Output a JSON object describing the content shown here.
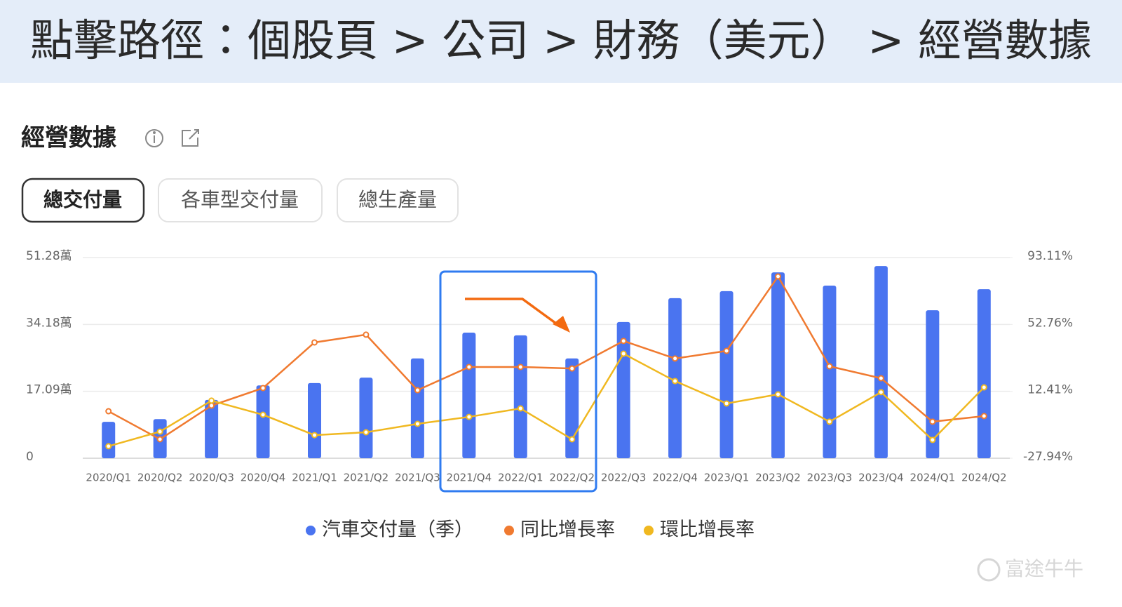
{
  "header": {
    "title": "點擊路徑：個股頁 > 公司 > 財務（美元） > 經營數據"
  },
  "section": {
    "title": "經營數據",
    "tabs": [
      "總交付量",
      "各車型交付量",
      "總生產量"
    ]
  },
  "watermark": "富途牛牛",
  "chart_data": {
    "type": "bar",
    "categories": [
      "2020/Q1",
      "2020/Q2",
      "2020/Q3",
      "2020/Q4",
      "2021/Q1",
      "2021/Q2",
      "2021/Q3",
      "2021/Q4",
      "2022/Q1",
      "2022/Q2",
      "2022/Q3",
      "2022/Q4",
      "2023/Q1",
      "2023/Q2",
      "2023/Q3",
      "2023/Q4",
      "2024/Q1",
      "2024/Q2"
    ],
    "ylim": [
      0,
      51.28
    ],
    "yticks": [
      0,
      {
        "value": 17.09,
        "label": "17.09萬"
      },
      {
        "value": 34.18,
        "label": "34.18萬"
      },
      {
        "value": 51.28,
        "label": "51.28萬"
      }
    ],
    "y2lim": [
      -27.94,
      93.11
    ],
    "y2ticks": [
      {
        "value": -27.94,
        "label": "-27.94%"
      },
      {
        "value": 12.41,
        "label": "12.41%"
      },
      {
        "value": 52.76,
        "label": "52.76%"
      },
      {
        "value": 93.11,
        "label": "93.11%"
      }
    ],
    "grid": true,
    "series": [
      {
        "name": "汽車交付量（季）",
        "type": "bar",
        "color": "#4a74f0",
        "values": [
          9.3,
          10.0,
          14.9,
          18.6,
          19.2,
          20.6,
          25.5,
          32.1,
          31.4,
          25.5,
          34.8,
          40.9,
          42.7,
          47.5,
          44.1,
          49.1,
          37.8,
          43.2
        ]
      },
      {
        "name": "同比增長率",
        "type": "line",
        "axis": "y2",
        "color": "#f07a30",
        "values": [
          0.4,
          -16.5,
          3.8,
          14.4,
          41.9,
          46.6,
          13.1,
          27.1,
          27.1,
          26.2,
          42.8,
          32.2,
          36.8,
          81.7,
          27.5,
          20.3,
          -5.9,
          -2.5
        ]
      },
      {
        "name": "環比增長率",
        "type": "line",
        "axis": "y2",
        "color": "#f0b820",
        "values": [
          -20.7,
          -11.9,
          6.8,
          -1.7,
          -14.0,
          -12.3,
          -7.2,
          -3.0,
          2.1,
          -16.5,
          35.1,
          18.6,
          5.1,
          10.6,
          -5.9,
          11.9,
          -16.9,
          14.8
        ]
      }
    ]
  }
}
